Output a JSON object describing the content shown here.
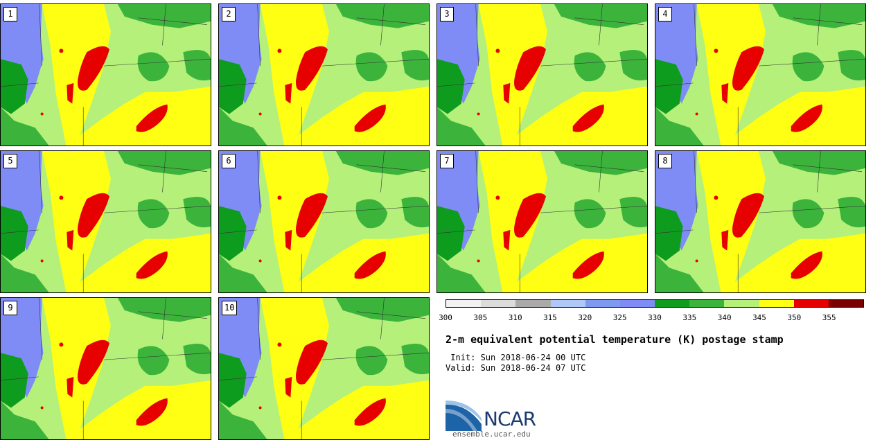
{
  "panels": [
    "1",
    "2",
    "3",
    "4",
    "5",
    "6",
    "7",
    "8",
    "9",
    "10"
  ],
  "colorbar": {
    "colors": [
      "#f2f2f2",
      "#dcdcdc",
      "#aaaaaa",
      "#b0c8f8",
      "#7d9af0",
      "#7f8cf6",
      "#0e9c1e",
      "#3cb43c",
      "#b4f07a",
      "#ffff14",
      "#e60000",
      "#7a0000"
    ],
    "ticks": [
      "300",
      "305",
      "310",
      "315",
      "320",
      "325",
      "330",
      "335",
      "340",
      "345",
      "350",
      "355"
    ]
  },
  "title": "2-m equivalent potential temperature (K) postage stamp",
  "init": " Init: Sun 2018-06-24 00 UTC",
  "valid": "Valid: Sun 2018-06-24 07 UTC",
  "logo": {
    "text": "NCAR",
    "url": "ensemble.ucar.edu"
  }
}
